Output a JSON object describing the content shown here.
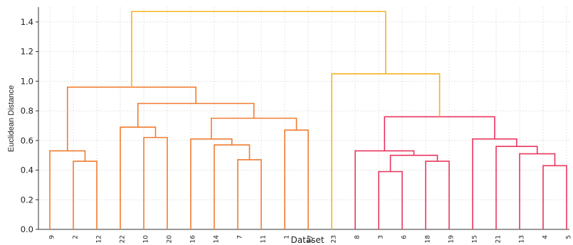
{
  "chart_data": {
    "type": "dendrogram",
    "xlabel": "Dataset",
    "ylabel": "Euclidean Distance",
    "ylim": [
      0,
      1.5
    ],
    "yticks": [
      "0.0",
      "0.2",
      "0.4",
      "0.6",
      "0.8",
      "1.0",
      "1.2",
      "1.4"
    ],
    "grid": true,
    "leaves": [
      "9",
      "2",
      "12",
      "22",
      "10",
      "20",
      "16",
      "14",
      "7",
      "11",
      "1",
      "17",
      "23",
      "8",
      "3",
      "6",
      "18",
      "19",
      "15",
      "21",
      "13",
      "4",
      "5"
    ],
    "colors": {
      "left": "#f07c30",
      "right": "#e8365f",
      "top": "#f5b321"
    },
    "merges": [
      {
        "a": "2",
        "b": "12",
        "height": 0.46,
        "color": "left"
      },
      {
        "a": "9",
        "b": "2|12",
        "height": 0.53,
        "color": "left"
      },
      {
        "a": "10",
        "b": "20",
        "height": 0.62,
        "color": "left"
      },
      {
        "a": "22",
        "b": "10|20",
        "height": 0.69,
        "color": "left"
      },
      {
        "a": "7",
        "b": "11",
        "height": 0.47,
        "color": "left"
      },
      {
        "a": "14",
        "b": "7|11",
        "height": 0.57,
        "color": "left"
      },
      {
        "a": "16",
        "b": "14|7|11",
        "height": 0.61,
        "color": "left"
      },
      {
        "a": "1",
        "b": "17",
        "height": 0.67,
        "color": "left"
      },
      {
        "a": "16|14|7|11",
        "b": "1|17",
        "height": 0.75,
        "color": "left"
      },
      {
        "a": "22|10|20",
        "b": "16|14|7|11|1|17",
        "height": 0.85,
        "color": "left"
      },
      {
        "a": "9|2|12",
        "b": "22|10|20|16|14|7|11|1|17",
        "height": 0.96,
        "color": "left"
      },
      {
        "a": "3",
        "b": "6",
        "height": 0.39,
        "color": "right"
      },
      {
        "a": "18",
        "b": "19",
        "height": 0.46,
        "color": "right"
      },
      {
        "a": "3|6",
        "b": "18|19",
        "height": 0.5,
        "color": "right"
      },
      {
        "a": "8",
        "b": "3|6|18|19",
        "height": 0.53,
        "color": "right"
      },
      {
        "a": "4",
        "b": "5",
        "height": 0.43,
        "color": "right"
      },
      {
        "a": "13",
        "b": "4|5",
        "height": 0.51,
        "color": "right"
      },
      {
        "a": "21",
        "b": "13|4|5",
        "height": 0.56,
        "color": "right"
      },
      {
        "a": "15",
        "b": "21|13|4|5",
        "height": 0.61,
        "color": "right"
      },
      {
        "a": "8|3|6|18|19",
        "b": "15|21|13|4|5",
        "height": 0.76,
        "color": "right"
      },
      {
        "a": "23",
        "b": "8|3|6|18|19|15|21|13|4|5",
        "height": 1.05,
        "color": "top"
      },
      {
        "a": "9|2|12|22|10|20|16|14|7|11|1|17",
        "b": "23|8|3|6|18|19|15|21|13|4|5",
        "height": 1.47,
        "color": "top"
      }
    ]
  }
}
